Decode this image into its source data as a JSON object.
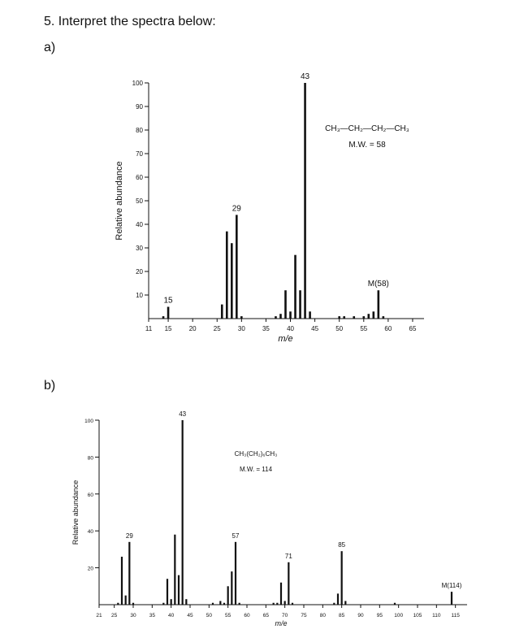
{
  "question": "5. Interpret the spectra below:",
  "parts": [
    "a)",
    "b)"
  ],
  "chart_data": [
    {
      "type": "bar",
      "xlabel": "m/e",
      "ylabel": "Relative abundance",
      "xlim": [
        11,
        67
      ],
      "ylim": [
        0,
        100
      ],
      "x_ticks": [
        11,
        15,
        20,
        25,
        30,
        35,
        40,
        45,
        50,
        55,
        60,
        65
      ],
      "y_ticks": [
        10,
        20,
        30,
        40,
        50,
        60,
        70,
        80,
        90,
        100
      ],
      "compound_formula": "CH₃—CH₂—CH₂—CH₃",
      "molecular_weight": "M.W. = 58",
      "annotations": [
        {
          "x": 15,
          "text": "15"
        },
        {
          "x": 29,
          "text": "29"
        },
        {
          "x": 43,
          "text": "43"
        },
        {
          "x": 58,
          "text": "M(58)"
        }
      ],
      "x": [
        14,
        15,
        26,
        27,
        28,
        29,
        30,
        37,
        38,
        39,
        40,
        41,
        42,
        43,
        44,
        50,
        51,
        53,
        55,
        56,
        57,
        58,
        59
      ],
      "values": [
        1,
        5,
        6,
        37,
        32,
        44,
        1,
        1,
        2,
        12,
        3,
        27,
        12,
        100,
        3,
        1,
        1,
        1,
        1,
        2,
        3,
        12,
        1
      ]
    },
    {
      "type": "bar",
      "xlabel": "m/e",
      "ylabel": "Relative abundance",
      "xlim": [
        21,
        117
      ],
      "ylim": [
        0,
        100
      ],
      "x_ticks": [
        21,
        25,
        30,
        35,
        40,
        45,
        50,
        55,
        60,
        65,
        70,
        75,
        80,
        85,
        90,
        95,
        100,
        105,
        110,
        115
      ],
      "y_ticks": [
        20,
        40,
        60,
        80,
        100
      ],
      "compound_formula": "CH₃(CH₂)₆CH₃",
      "molecular_weight": "M.W. = 114",
      "annotations": [
        {
          "x": 29,
          "text": "29"
        },
        {
          "x": 43,
          "text": "43"
        },
        {
          "x": 57,
          "text": "57"
        },
        {
          "x": 71,
          "text": "71"
        },
        {
          "x": 85,
          "text": "85"
        },
        {
          "x": 114,
          "text": "M(114)"
        }
      ],
      "x": [
        26,
        27,
        28,
        29,
        30,
        38,
        39,
        40,
        41,
        42,
        43,
        44,
        51,
        53,
        54,
        55,
        56,
        57,
        58,
        67,
        68,
        69,
        70,
        71,
        72,
        83,
        84,
        85,
        86,
        99,
        114
      ],
      "values": [
        1,
        26,
        5,
        34,
        1,
        1,
        14,
        3,
        38,
        16,
        100,
        3,
        1,
        2,
        1,
        10,
        18,
        34,
        1,
        1,
        1,
        12,
        2,
        23,
        1,
        1,
        6,
        29,
        2,
        1,
        7
      ]
    }
  ]
}
